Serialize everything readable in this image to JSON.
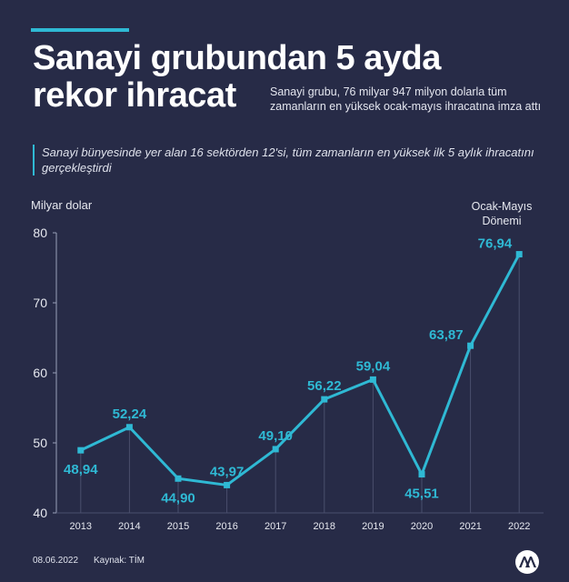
{
  "header": {
    "title": "Sanayi grubundan 5 ayda\nrekor ihracat",
    "subtitle": "Sanayi grubu, 76 milyar 947 milyon dolarla tüm zamanların en yüksek ocak-mayıs ihracatına imza attı",
    "note": "Sanayi bünyesinde yer alan 16 sektörden 12'si, tüm zamanların en yüksek ilk 5 aylık ihracatını gerçekleştirdi"
  },
  "footer": {
    "date": "08.06.2022",
    "source": "Kaynak: TİM"
  },
  "colors": {
    "background": "#272b47",
    "accent": "#2fb9d4",
    "axis_text": "#e6e8ef",
    "grid": "#4a4f6d"
  },
  "logo": {
    "name": "aa-logo-icon"
  },
  "chart_data": {
    "type": "line",
    "ylabel": "Milyar dolar",
    "annotation": "Ocak-Mayıs Dönemi",
    "x": [
      "2013",
      "2014",
      "2015",
      "2016",
      "2017",
      "2018",
      "2019",
      "2020",
      "2021",
      "2022"
    ],
    "values": [
      48.94,
      52.24,
      44.9,
      43.97,
      49.1,
      56.22,
      59.04,
      45.51,
      63.87,
      76.94
    ],
    "data_labels": [
      "48,94",
      "52,24",
      "44,90",
      "43,97",
      "49,10",
      "56,22",
      "59,04",
      "45,51",
      "63,87",
      "76,94"
    ],
    "ylim": [
      40,
      80
    ],
    "yticks": [
      40,
      50,
      60,
      70,
      80
    ],
    "grid": false,
    "legend": "none"
  }
}
